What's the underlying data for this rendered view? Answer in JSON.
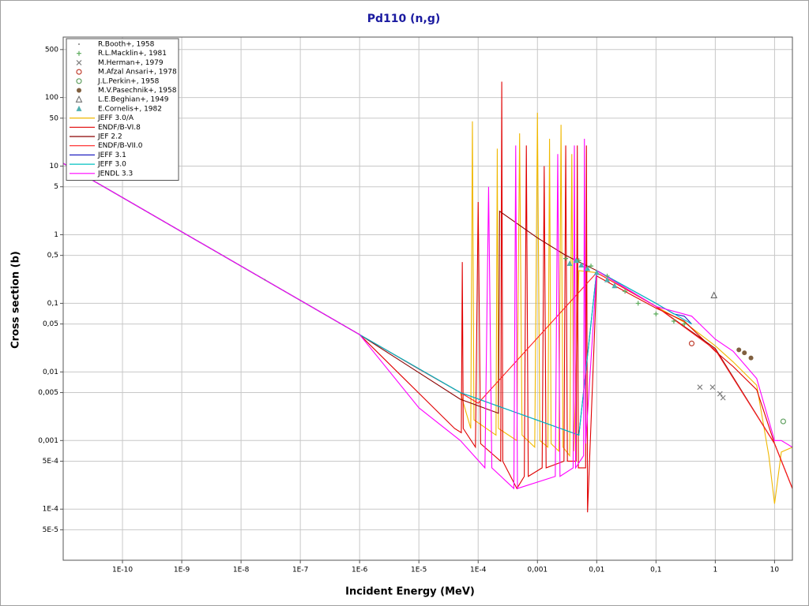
{
  "chart_data": {
    "type": "line",
    "title": "Pd110 (n,g)",
    "x_label": "Incident Energy (MeV)",
    "y_label": "Cross section (b)",
    "xscale": "log",
    "yscale": "log",
    "grid": true,
    "legend": "upper left",
    "xlim": [
      1e-11,
      20
    ],
    "ylim": [
      1.8e-05,
      760
    ],
    "xticks": [
      {
        "value": 1e-10,
        "label": "1E-10"
      },
      {
        "value": 1e-09,
        "label": "1E-9"
      },
      {
        "value": 1e-08,
        "label": "1E-8"
      },
      {
        "value": 1e-07,
        "label": "1E-7"
      },
      {
        "value": 1e-06,
        "label": "1E-6"
      },
      {
        "value": 1e-05,
        "label": "1E-5"
      },
      {
        "value": 0.0001,
        "label": "1E-4"
      },
      {
        "value": 0.001,
        "label": "0,001"
      },
      {
        "value": 0.01,
        "label": "0,01"
      },
      {
        "value": 0.1,
        "label": "0,1"
      },
      1,
      10
    ],
    "yticks": [
      500,
      100,
      50,
      10,
      5,
      1,
      {
        "value": 0.5,
        "label": "0,5"
      },
      {
        "value": 0.1,
        "label": "0,1"
      },
      {
        "value": 0.05,
        "label": "0,05"
      },
      {
        "value": 0.01,
        "label": "0,01"
      },
      {
        "value": 0.005,
        "label": "0,005"
      },
      {
        "value": 0.001,
        "label": "0,001"
      },
      {
        "value": 0.0005,
        "label": "5E-4"
      },
      {
        "value": 0.0001,
        "label": "1E-4"
      },
      {
        "value": 5e-05,
        "label": "5E-5"
      }
    ],
    "series": [
      {
        "name": "R.Booth+, 1958",
        "mode": "markers",
        "marker": "dot",
        "color": "#808080",
        "x": [
          2.53e-08
        ],
        "values": [
          0.22
        ]
      },
      {
        "name": "R.L.Macklin+, 1981",
        "mode": "markers",
        "marker": "plus",
        "color": "#5aaa5a",
        "x": [
          0.003,
          0.005,
          0.008,
          0.015,
          0.03,
          0.05,
          0.1,
          0.2,
          0.3
        ],
        "values": [
          0.45,
          0.42,
          0.35,
          0.25,
          0.15,
          0.1,
          0.07,
          0.055,
          0.05
        ]
      },
      {
        "name": "M.Herman+, 1979",
        "mode": "markers",
        "marker": "x",
        "color": "#808080",
        "x": [
          0.55,
          0.9,
          1.2,
          1.35
        ],
        "values": [
          0.006,
          0.006,
          0.0048,
          0.0042
        ]
      },
      {
        "name": "M.Afzal Ansari+, 1978",
        "mode": "markers",
        "marker": "circle",
        "color": "#c04030",
        "x": [
          0.4
        ],
        "values": [
          0.026
        ]
      },
      {
        "name": "J.L.Perkin+, 1958",
        "mode": "markers",
        "marker": "circle",
        "color": "#60a060",
        "x": [
          14
        ],
        "values": [
          0.0019
        ]
      },
      {
        "name": "M.V.Pasechnik+, 1958",
        "mode": "markers",
        "marker": "filled-circle",
        "color": "#806040",
        "x": [
          2.5,
          3.1,
          4.0
        ],
        "values": [
          0.021,
          0.019,
          0.016
        ]
      },
      {
        "name": "L.E.Beghian+, 1949",
        "mode": "markers",
        "marker": "triangle",
        "color": "#606060",
        "x": [
          0.95
        ],
        "values": [
          0.13
        ]
      },
      {
        "name": "E.Cornelis+, 1982",
        "mode": "markers",
        "marker": "filled-triangle",
        "color": "#50b0b0",
        "x": [
          0.0035,
          0.0045,
          0.0055,
          0.007,
          0.01,
          0.015,
          0.02
        ],
        "values": [
          0.38,
          0.42,
          0.36,
          0.32,
          0.28,
          0.22,
          0.18
        ]
      },
      {
        "name": "JEFF 3.0/A",
        "mode": "lines",
        "color": "#f0b800",
        "x": [
          1e-11,
          1e-06,
          5e-05,
          7.5e-05,
          8e-05,
          8.5e-05,
          0.0002,
          0.00021,
          0.00022,
          0.00045,
          0.0005,
          0.00055,
          0.0009,
          0.001,
          0.0011,
          0.0015,
          0.0016,
          0.0017,
          0.0023,
          0.0025,
          0.0027,
          0.0035,
          0.0038,
          0.0041,
          0.005,
          0.01,
          0.1,
          0.3,
          1,
          2,
          5,
          8,
          10,
          13,
          20
        ],
        "values": [
          11,
          0.035,
          0.005,
          0.0015,
          45,
          0.002,
          0.0012,
          18,
          0.0015,
          0.001,
          30,
          0.0012,
          0.0008,
          60,
          0.001,
          0.0008,
          25,
          0.0009,
          0.0007,
          40,
          0.0008,
          0.0006,
          15,
          0.0007,
          0.3,
          0.28,
          0.09,
          0.053,
          0.024,
          0.014,
          0.0064,
          0.0006,
          0.00012,
          0.00068,
          0.0008
        ]
      },
      {
        "name": "ENDF/B-VI.8",
        "mode": "lines",
        "color": "#e00000",
        "x": [
          1e-11,
          1e-06,
          4e-05,
          5.2e-05,
          5.4e-05,
          5.6e-05,
          9e-05,
          0.0001,
          0.00011,
          0.00024,
          0.00025,
          0.00026,
          0.00045,
          0.0006,
          0.00065,
          0.0007,
          0.0012,
          0.0013,
          0.0014,
          0.0028,
          0.003,
          0.0032,
          0.0045,
          0.0047,
          0.0049,
          0.0065,
          0.0067,
          0.007,
          0.01,
          0.1,
          0.3,
          1,
          2,
          5,
          10,
          20
        ],
        "values": [
          11,
          0.035,
          0.0015,
          0.0013,
          0.4,
          0.0015,
          0.0008,
          3,
          0.0009,
          0.0005,
          170,
          0.0005,
          0.0002,
          0.0003,
          20,
          0.0003,
          0.0004,
          10,
          0.0004,
          0.0005,
          20,
          0.0005,
          0.0005,
          20,
          0.0004,
          0.0004,
          20,
          9e-05,
          0.25,
          0.085,
          0.055,
          0.02,
          0.012,
          0.0055,
          0.0009,
          0.0002
        ]
      },
      {
        "name": "JEF 2.2",
        "mode": "lines",
        "color": "#8b0000",
        "x": [
          1e-11,
          1e-06,
          5e-05,
          0.00022,
          0.00023,
          0.001,
          0.003,
          0.01,
          0.1,
          1,
          10,
          20
        ],
        "values": [
          11,
          0.035,
          0.004,
          0.0025,
          2.2,
          0.9,
          0.5,
          0.3,
          0.09,
          0.022,
          0.0009,
          0.0002
        ]
      },
      {
        "name": "ENDF/B-VII.0",
        "mode": "lines",
        "color": "#ff2020",
        "x": [
          1e-11,
          1e-06,
          1e-05,
          5e-05,
          0.0001,
          0.01,
          0.1,
          1,
          10,
          20
        ],
        "values": [
          11,
          0.035,
          0.011,
          0.005,
          0.0035,
          0.28,
          0.09,
          0.021,
          0.0009,
          0.0002
        ]
      },
      {
        "name": "JEFF 3.1",
        "mode": "lines",
        "color": "#2020c0",
        "x": [
          1e-11,
          1e-06,
          5e-05,
          0.005,
          0.01,
          0.1,
          0.2,
          0.3,
          0.4
        ],
        "values": [
          11,
          0.035,
          0.005,
          0.0012,
          0.3,
          0.1,
          0.07,
          0.065,
          0.05
        ]
      },
      {
        "name": "JEFF 3.0",
        "mode": "lines",
        "color": "#00c0c0",
        "x": [
          1e-11,
          1e-06,
          5e-05,
          0.005,
          0.01,
          0.1,
          0.4
        ],
        "values": [
          11,
          0.035,
          0.005,
          0.0012,
          0.3,
          0.1,
          0.05
        ]
      },
      {
        "name": "JENDL 3.3",
        "mode": "lines",
        "color": "#ff00ff",
        "x": [
          1e-11,
          1e-06,
          1e-05,
          5e-05,
          0.00013,
          0.00015,
          0.00017,
          0.0004,
          0.00043,
          0.00046,
          0.002,
          0.0022,
          0.0024,
          0.004,
          0.0042,
          0.0044,
          0.006,
          0.0062,
          0.0065,
          0.01,
          0.1,
          0.4,
          1,
          2,
          5,
          10,
          13,
          20
        ],
        "values": [
          11,
          0.035,
          0.003,
          0.001,
          0.0004,
          5,
          0.0004,
          0.0002,
          20,
          0.0002,
          0.0003,
          15,
          0.0003,
          0.0004,
          20,
          0.0004,
          0.0006,
          25,
          0.0009,
          0.3,
          0.09,
          0.065,
          0.03,
          0.02,
          0.008,
          0.001,
          0.001,
          0.0008
        ]
      }
    ]
  }
}
